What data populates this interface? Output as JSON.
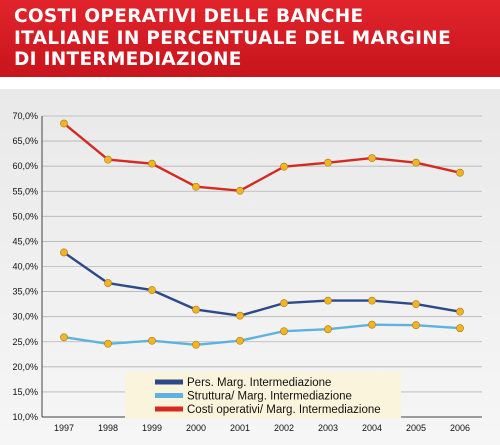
{
  "title": "COSTI OPERATIVI DELLE BANCHE\nITALIANE IN PERCENTUALE DEL MARGINE\nDI INTERMEDIAZIONE",
  "colors": {
    "banner": "#d81b22",
    "pers": "#2c4a8a",
    "struttura": "#5fb1e0",
    "costi": "#d42a22",
    "marker": "#f2b324",
    "legend_bg": "#fbf4dc"
  },
  "chart_data": {
    "type": "line",
    "categories": [
      "1997",
      "1998",
      "1999",
      "2000",
      "2001",
      "2002",
      "2003",
      "2004",
      "2005",
      "2006"
    ],
    "series": [
      {
        "name": "Pers. Marg. Intermediazione",
        "values": [
          42.8,
          36.7,
          35.3,
          31.4,
          30.2,
          32.7,
          33.2,
          33.2,
          32.5,
          31.0
        ]
      },
      {
        "name": "Struttura/ Marg. Intermediazione",
        "values": [
          25.9,
          24.6,
          25.2,
          24.4,
          25.2,
          27.1,
          27.5,
          28.4,
          28.3,
          27.7
        ]
      },
      {
        "name": "Costi operativi/ Marg. Intermediazione",
        "values": [
          68.5,
          61.3,
          60.5,
          55.9,
          55.1,
          59.9,
          60.7,
          61.6,
          60.7,
          58.7
        ]
      }
    ],
    "ylim": [
      10,
      70
    ],
    "yticks": [
      "10,0%",
      "15,0%",
      "20,0%",
      "25,0%",
      "30,0%",
      "35,0%",
      "40,0%",
      "45,0%",
      "50,0%",
      "55,0%",
      "60,0%",
      "65,0%",
      "70,0%"
    ],
    "ytick_values": [
      10,
      15,
      20,
      25,
      30,
      35,
      40,
      45,
      50,
      55,
      60,
      65,
      70
    ],
    "grid": true,
    "legend": "bottom-center"
  }
}
